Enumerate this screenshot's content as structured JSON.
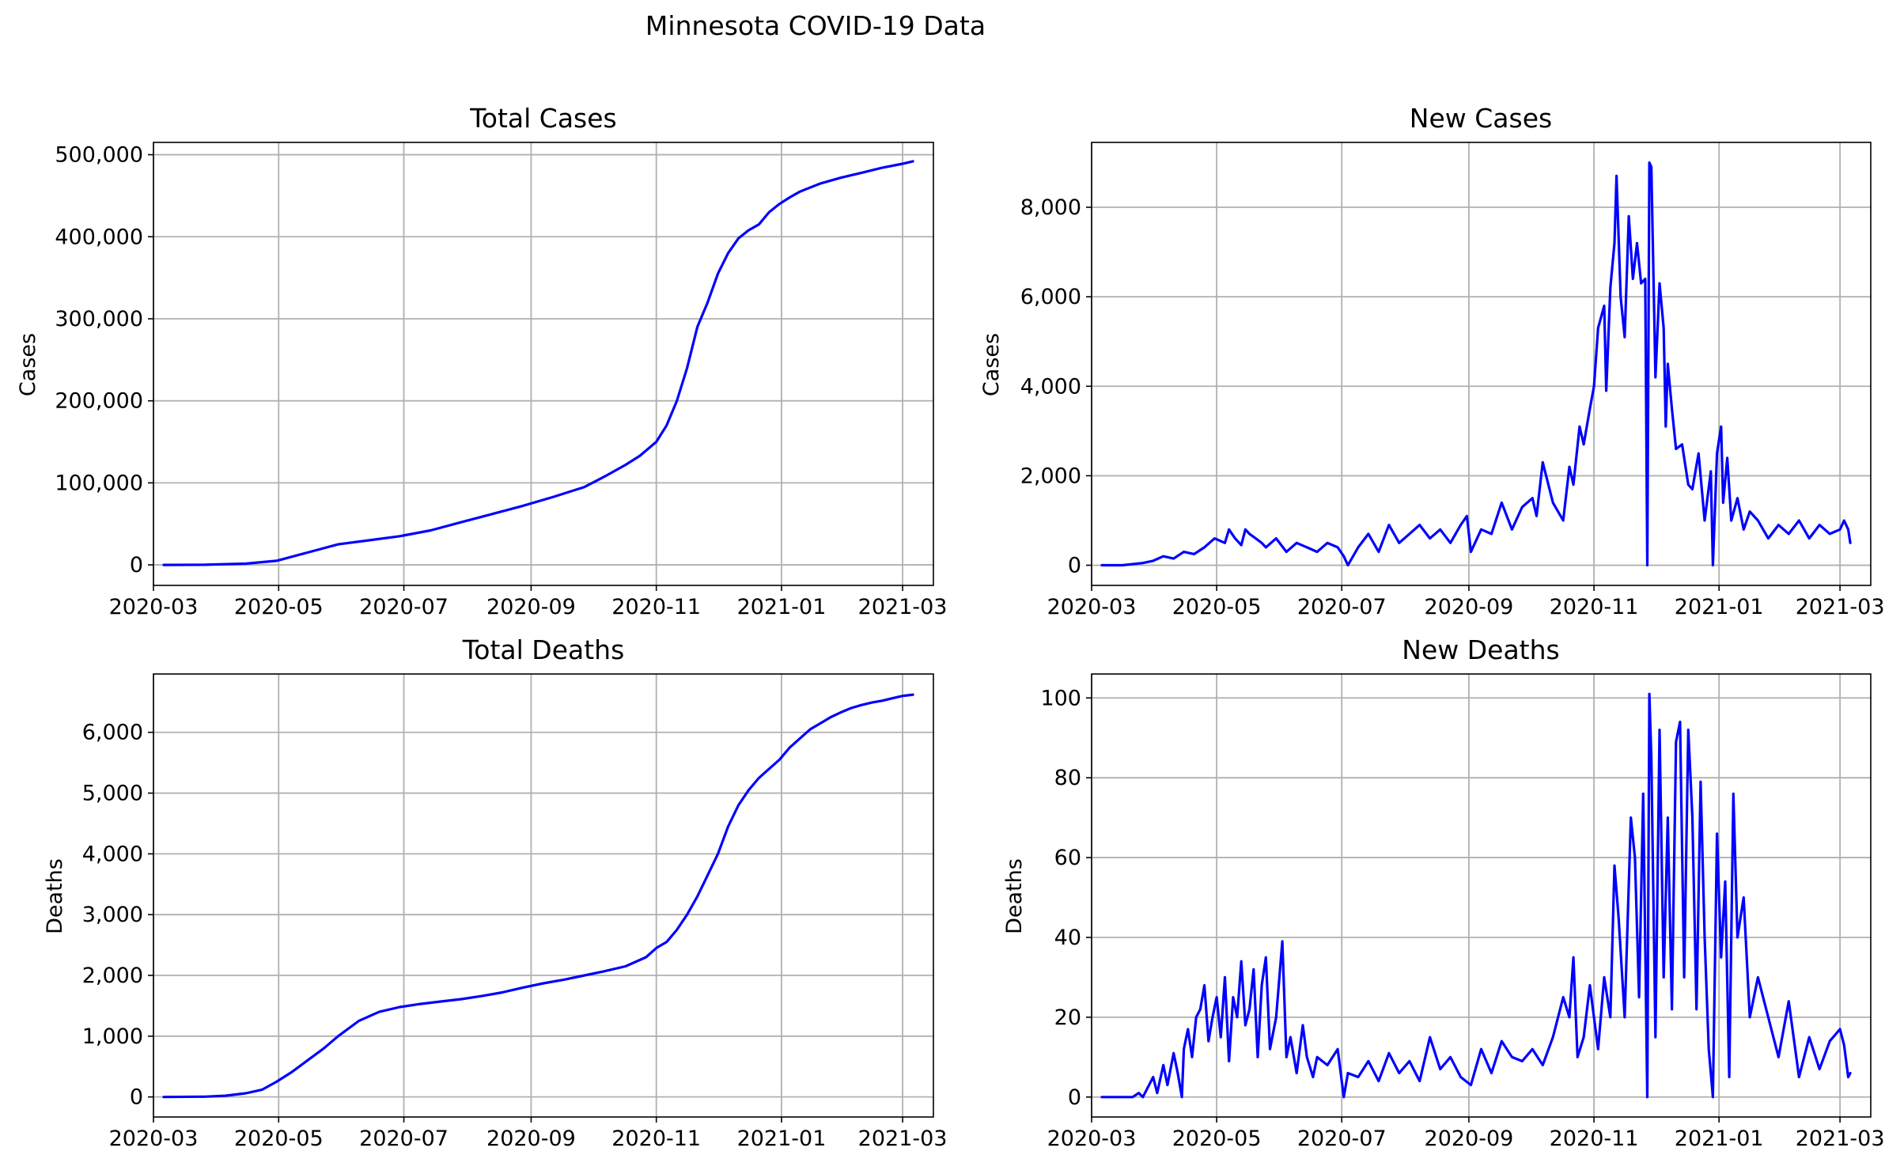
{
  "figure": {
    "title": "Minnesota COVID-19 Data",
    "series_color": "#0000ff",
    "grid_color": "#b0b0b0"
  },
  "chart_data": [
    {
      "id": "total-cases",
      "type": "line",
      "title": "Total Cases",
      "xlabel": "",
      "ylabel": "Cases",
      "grid": true,
      "xlim": [
        -5,
        375
      ],
      "ylim": [
        -25000,
        515000
      ],
      "x_tick_labels": [
        "2020-03",
        "2020-05",
        "2020-07",
        "2020-09",
        "2020-11",
        "2021-01",
        "2021-03"
      ],
      "x_tick_days": [
        -5,
        56,
        117,
        179,
        240,
        301,
        360
      ],
      "y_ticks": [
        0,
        100000,
        200000,
        300000,
        400000,
        500000
      ],
      "y_tick_labels": [
        "0",
        "100,000",
        "200,000",
        "300,000",
        "400,000",
        "500,000"
      ],
      "x_start": "2020-03-06",
      "series": [
        {
          "name": "Total Cases",
          "x": [
            0,
            20,
            40,
            55,
            70,
            85,
            100,
            115,
            130,
            145,
            160,
            175,
            190,
            205,
            215,
            225,
            232,
            240,
            245,
            250,
            255,
            260,
            265,
            270,
            275,
            280,
            285,
            290,
            295,
            300,
            305,
            310,
            320,
            330,
            340,
            350,
            360,
            365
          ],
          "values": [
            0,
            200,
            1500,
            5000,
            15000,
            25000,
            30000,
            35000,
            42000,
            52000,
            62000,
            72000,
            83000,
            95000,
            108000,
            122000,
            133000,
            150000,
            170000,
            200000,
            240000,
            290000,
            320000,
            355000,
            380000,
            398000,
            408000,
            415000,
            430000,
            440000,
            448000,
            455000,
            465000,
            472000,
            478000,
            484000,
            489000,
            492000
          ]
        }
      ]
    },
    {
      "id": "new-cases",
      "type": "line",
      "title": "New Cases",
      "xlabel": "",
      "ylabel": "Cases",
      "grid": true,
      "xlim": [
        -5,
        375
      ],
      "ylim": [
        -450,
        9450
      ],
      "x_tick_labels": [
        "2020-03",
        "2020-05",
        "2020-07",
        "2020-09",
        "2020-11",
        "2021-01",
        "2021-03"
      ],
      "x_tick_days": [
        -5,
        56,
        117,
        179,
        240,
        301,
        360
      ],
      "y_ticks": [
        0,
        2000,
        4000,
        6000,
        8000
      ],
      "y_tick_labels": [
        "0",
        "2,000",
        "4,000",
        "6,000",
        "8,000"
      ],
      "x_start": "2020-03-06",
      "series": [
        {
          "name": "New Cases",
          "x": [
            0,
            10,
            20,
            25,
            30,
            35,
            40,
            45,
            50,
            55,
            60,
            62,
            65,
            68,
            70,
            72,
            75,
            78,
            80,
            85,
            90,
            95,
            100,
            105,
            110,
            115,
            118,
            120,
            125,
            130,
            135,
            140,
            145,
            150,
            155,
            160,
            165,
            170,
            175,
            178,
            180,
            185,
            190,
            195,
            200,
            205,
            210,
            212,
            215,
            220,
            225,
            228,
            230,
            233,
            235,
            238,
            240,
            242,
            245,
            246,
            248,
            250,
            251,
            253,
            255,
            257,
            259,
            261,
            263,
            265,
            266,
            267,
            268,
            270,
            272,
            274,
            275,
            276,
            278,
            280,
            283,
            286,
            288,
            291,
            294,
            297,
            298,
            300,
            302,
            303,
            305,
            307,
            310,
            313,
            316,
            320,
            325,
            330,
            335,
            340,
            345,
            350,
            355,
            360,
            362,
            364,
            365
          ],
          "values": [
            0,
            0,
            50,
            100,
            200,
            150,
            300,
            250,
            400,
            600,
            500,
            800,
            600,
            450,
            800,
            700,
            600,
            500,
            400,
            600,
            300,
            500,
            400,
            300,
            500,
            400,
            200,
            0,
            400,
            700,
            300,
            900,
            500,
            700,
            900,
            600,
            800,
            500,
            900,
            1100,
            300,
            800,
            700,
            1400,
            800,
            1300,
            1500,
            1100,
            2300,
            1400,
            1000,
            2200,
            1800,
            3100,
            2700,
            3500,
            4000,
            5300,
            5800,
            3900,
            6200,
            7200,
            8700,
            6000,
            5100,
            7800,
            6400,
            7200,
            6300,
            6400,
            0,
            9000,
            8900,
            4200,
            6300,
            5300,
            3100,
            4500,
            3500,
            2600,
            2700,
            1800,
            1700,
            2500,
            1000,
            2100,
            0,
            2500,
            3100,
            1400,
            2400,
            1000,
            1500,
            800,
            1200,
            1000,
            600,
            900,
            700,
            1000,
            600,
            900,
            700,
            800,
            1000,
            800,
            500
          ]
        }
      ]
    },
    {
      "id": "total-deaths",
      "type": "line",
      "title": "Total Deaths",
      "xlabel": "",
      "ylabel": "Deaths",
      "grid": true,
      "xlim": [
        -5,
        375
      ],
      "ylim": [
        -330,
        6960
      ],
      "x_tick_labels": [
        "2020-03",
        "2020-05",
        "2020-07",
        "2020-09",
        "2020-11",
        "2021-01",
        "2021-03"
      ],
      "x_tick_days": [
        -5,
        56,
        117,
        179,
        240,
        301,
        360
      ],
      "y_ticks": [
        0,
        1000,
        2000,
        3000,
        4000,
        5000,
        6000
      ],
      "y_tick_labels": [
        "0",
        "1,000",
        "2,000",
        "3,000",
        "4,000",
        "5,000",
        "6,000"
      ],
      "x_start": "2020-03-06",
      "series": [
        {
          "name": "Total Deaths",
          "x": [
            0,
            20,
            30,
            40,
            48,
            55,
            62,
            70,
            78,
            85,
            95,
            105,
            115,
            125,
            135,
            145,
            155,
            165,
            175,
            185,
            195,
            205,
            215,
            225,
            235,
            240,
            245,
            250,
            255,
            260,
            265,
            270,
            275,
            280,
            285,
            290,
            295,
            300,
            305,
            310,
            315,
            320,
            325,
            330,
            335,
            340,
            345,
            350,
            355,
            360,
            365
          ],
          "values": [
            0,
            5,
            20,
            60,
            120,
            250,
            400,
            600,
            800,
            1000,
            1250,
            1400,
            1480,
            1530,
            1570,
            1610,
            1660,
            1720,
            1800,
            1870,
            1930,
            2000,
            2070,
            2150,
            2300,
            2450,
            2550,
            2750,
            3000,
            3300,
            3650,
            4000,
            4450,
            4800,
            5050,
            5250,
            5400,
            5550,
            5750,
            5900,
            6050,
            6150,
            6250,
            6330,
            6400,
            6450,
            6490,
            6520,
            6560,
            6600,
            6620
          ]
        }
      ]
    },
    {
      "id": "new-deaths",
      "type": "line",
      "title": "New Deaths",
      "xlabel": "",
      "ylabel": "Deaths",
      "grid": true,
      "xlim": [
        -5,
        375
      ],
      "ylim": [
        -5,
        106
      ],
      "x_tick_labels": [
        "2020-03",
        "2020-05",
        "2020-07",
        "2020-09",
        "2020-11",
        "2021-01",
        "2021-03"
      ],
      "x_tick_days": [
        -5,
        56,
        117,
        179,
        240,
        301,
        360
      ],
      "y_ticks": [
        0,
        20,
        40,
        60,
        80,
        100
      ],
      "y_tick_labels": [
        "0",
        "20",
        "40",
        "60",
        "80",
        "100"
      ],
      "x_start": "2020-03-06",
      "series": [
        {
          "name": "New Deaths",
          "x": [
            0,
            10,
            15,
            18,
            20,
            22,
            25,
            27,
            30,
            32,
            35,
            37,
            39,
            40,
            42,
            44,
            46,
            48,
            50,
            52,
            54,
            56,
            58,
            60,
            62,
            64,
            66,
            68,
            70,
            72,
            74,
            76,
            78,
            80,
            82,
            85,
            88,
            90,
            92,
            95,
            98,
            100,
            103,
            105,
            110,
            115,
            118,
            120,
            125,
            130,
            135,
            140,
            145,
            150,
            155,
            160,
            165,
            170,
            175,
            180,
            185,
            190,
            195,
            200,
            205,
            210,
            215,
            220,
            225,
            228,
            230,
            232,
            235,
            238,
            240,
            242,
            245,
            248,
            250,
            252,
            255,
            258,
            260,
            262,
            264,
            266,
            267,
            268,
            270,
            272,
            274,
            276,
            278,
            280,
            282,
            284,
            286,
            288,
            290,
            292,
            294,
            296,
            298,
            300,
            302,
            304,
            306,
            308,
            310,
            313,
            316,
            320,
            325,
            330,
            335,
            340,
            345,
            350,
            355,
            360,
            362,
            364,
            365
          ],
          "values": [
            0,
            0,
            0,
            1,
            0,
            2,
            5,
            1,
            8,
            3,
            11,
            6,
            0,
            12,
            17,
            10,
            20,
            22,
            28,
            14,
            20,
            25,
            15,
            30,
            9,
            25,
            20,
            34,
            18,
            22,
            32,
            10,
            28,
            35,
            12,
            20,
            39,
            10,
            15,
            6,
            18,
            10,
            5,
            10,
            8,
            12,
            0,
            6,
            5,
            9,
            4,
            11,
            6,
            9,
            4,
            15,
            7,
            10,
            5,
            3,
            12,
            6,
            14,
            10,
            9,
            12,
            8,
            15,
            25,
            20,
            35,
            10,
            15,
            28,
            20,
            12,
            30,
            20,
            58,
            45,
            20,
            70,
            60,
            25,
            76,
            0,
            101,
            85,
            15,
            92,
            30,
            70,
            22,
            89,
            94,
            30,
            92,
            70,
            22,
            79,
            40,
            12,
            0,
            66,
            35,
            54,
            5,
            76,
            40,
            50,
            20,
            30,
            20,
            10,
            24,
            5,
            15,
            7,
            14,
            17,
            13,
            5,
            6
          ]
        }
      ]
    }
  ]
}
